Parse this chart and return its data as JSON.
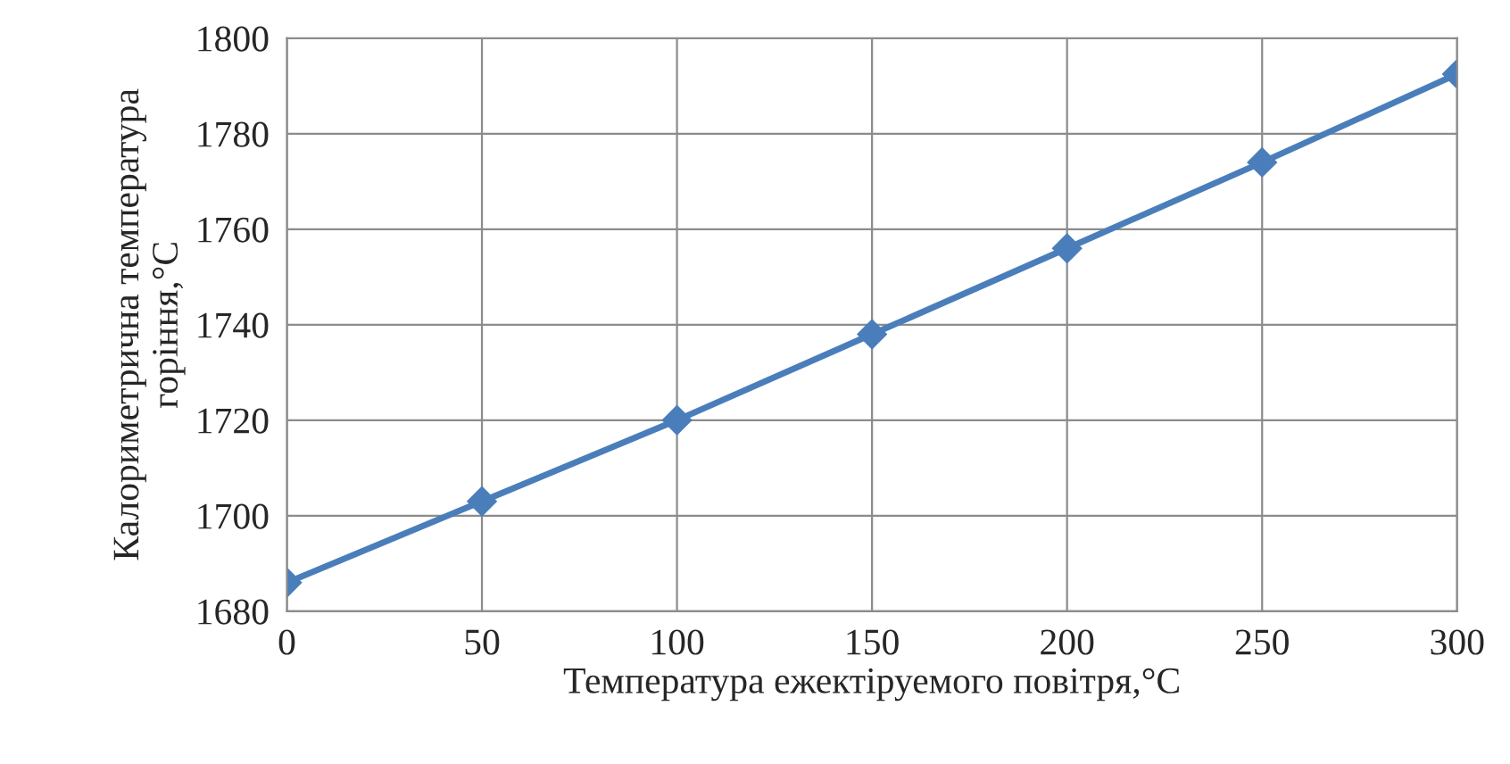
{
  "chart_data": {
    "type": "line",
    "xlabel": "Температура ежектіруемого повітря,°C",
    "ylabel": "Калориметрична температура\nгоріння,°C",
    "x": [
      0,
      50,
      100,
      150,
      200,
      250,
      300
    ],
    "series": [
      {
        "color": "#4a7ebb",
        "values": [
          1686,
          1703,
          1720,
          1738,
          1756,
          1774,
          1792.5
        ]
      }
    ],
    "xlim": [
      0,
      300
    ],
    "xticks": [
      0,
      50,
      100,
      150,
      200,
      250,
      300
    ],
    "ylim": [
      1680,
      1800
    ],
    "yticks": [
      1680,
      1700,
      1720,
      1740,
      1760,
      1780,
      1800
    ],
    "grid": true,
    "marker": "diamond",
    "line_style": "solid"
  }
}
